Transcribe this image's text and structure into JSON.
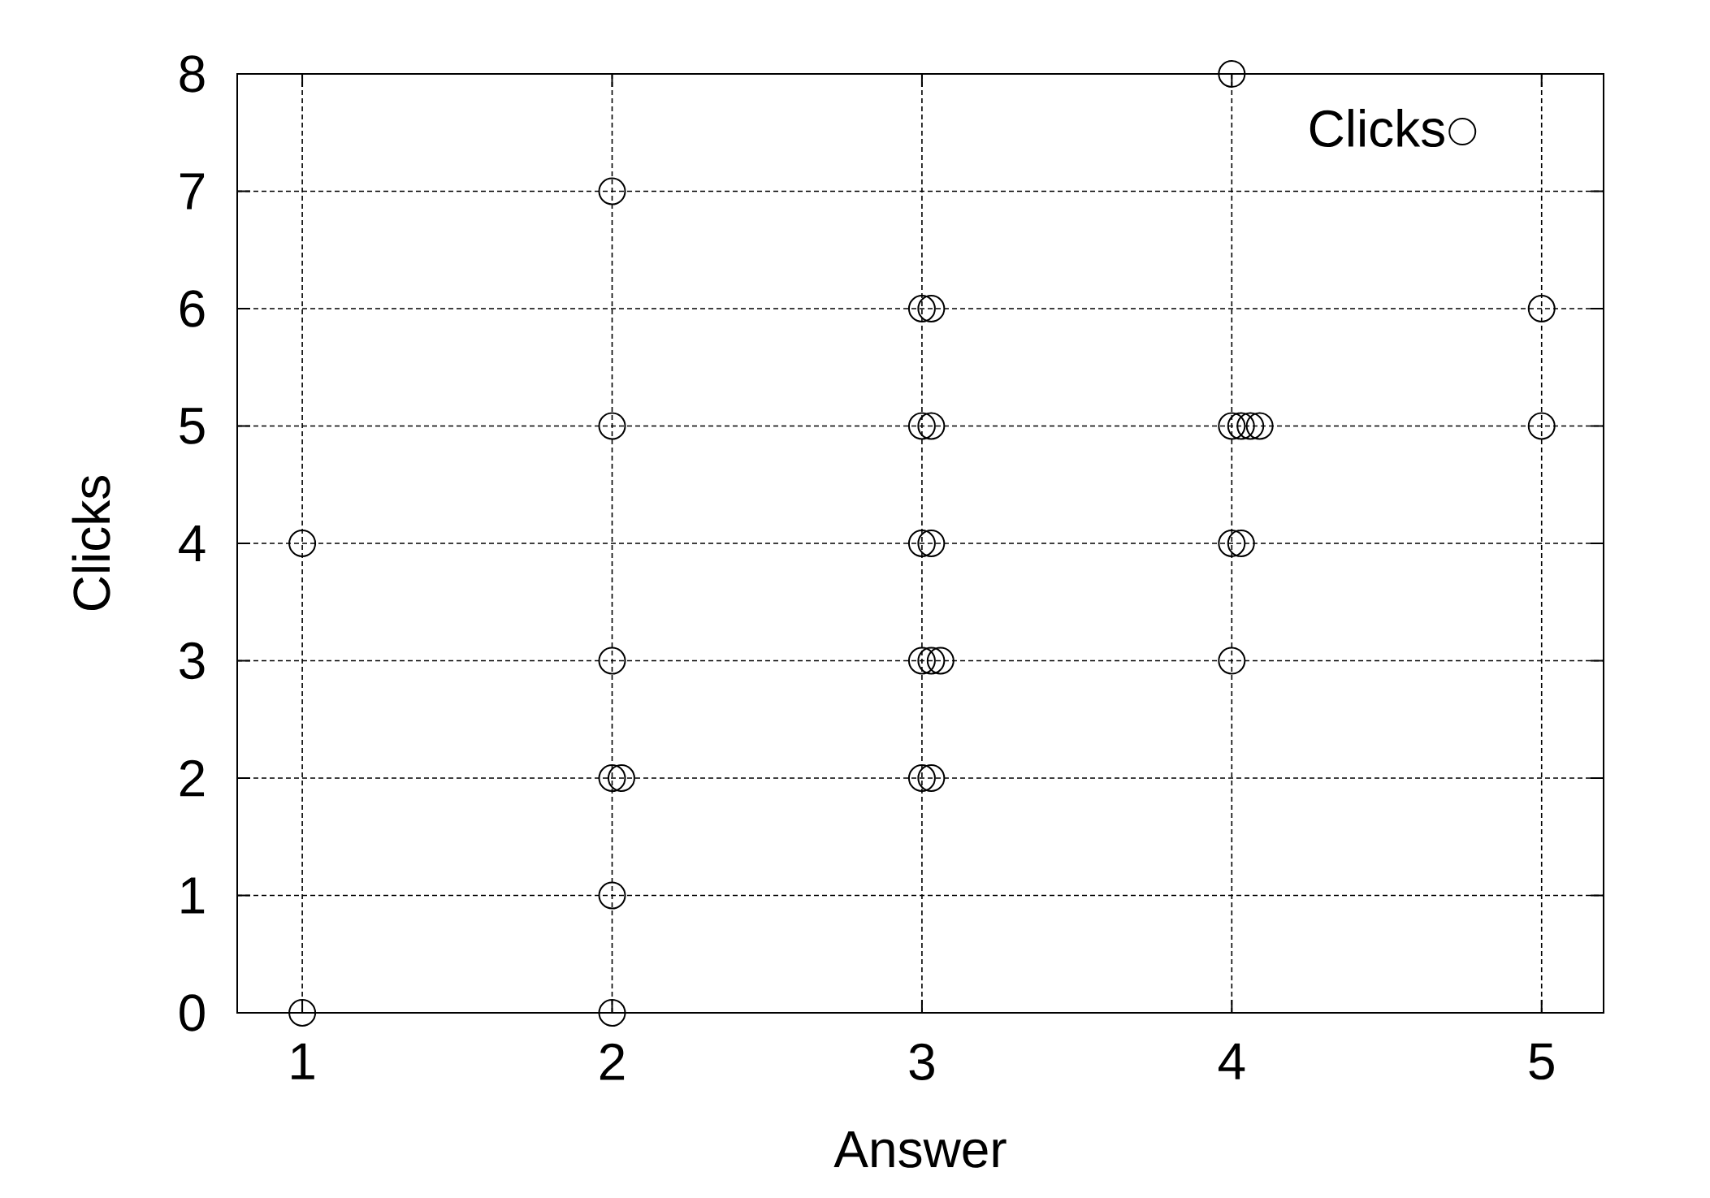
{
  "chart_data": {
    "type": "scatter",
    "xlabel": "Answer",
    "ylabel": "Clicks",
    "series": [
      {
        "name": "Clicks",
        "color": "#000000",
        "x": [
          1,
          1,
          2,
          2,
          2,
          2,
          2.03,
          2,
          2,
          3,
          3.03,
          3,
          3.03,
          3,
          3.03,
          3,
          3.03,
          3.06,
          3,
          3.03,
          4,
          4,
          4.03,
          4.06,
          4.09,
          4,
          4.03,
          4,
          5,
          5
        ],
        "values": [
          4,
          0,
          7,
          5,
          3,
          2,
          2,
          1,
          0,
          6,
          6,
          5,
          5,
          4,
          4,
          3,
          3,
          3,
          2,
          2,
          8,
          5,
          5,
          5,
          5,
          4,
          4,
          3,
          6,
          5
        ]
      }
    ],
    "xlim": [
      0.79,
      5.2
    ],
    "ylim": [
      0,
      8
    ],
    "xticks": [
      1,
      2,
      3,
      4,
      5
    ],
    "yticks": [
      0,
      1,
      2,
      3,
      4,
      5,
      6,
      7,
      8
    ],
    "grid": true,
    "legend": "top right",
    "marker": "circle"
  }
}
